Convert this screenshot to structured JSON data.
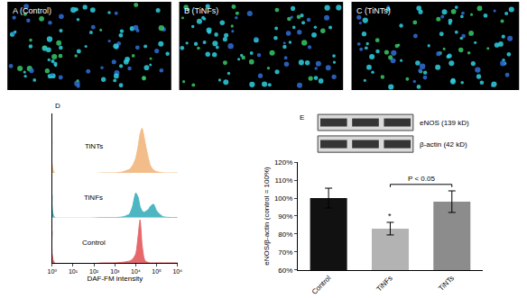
{
  "chart_data": [
    {
      "type": "image",
      "title": "A (Control)"
    },
    {
      "type": "image",
      "title": "B (TiNFs)"
    },
    {
      "type": "image",
      "title": "C (TiNTs)"
    },
    {
      "type": "area",
      "title": "D",
      "x_label": "DAF-FM intensity",
      "log": "x",
      "xlim": [
        1,
        1000000
      ],
      "xticks": [
        {
          "value": 1,
          "label": "10⁰"
        },
        {
          "value": 10,
          "label": "10¹"
        },
        {
          "value": 100,
          "label": "10²"
        },
        {
          "value": 1000,
          "label": "10³"
        },
        {
          "value": 10000,
          "label": "10⁴"
        },
        {
          "value": 100000,
          "label": "10⁵"
        },
        {
          "value": 1000000,
          "label": "10⁶"
        }
      ],
      "ylim": [
        0,
        100
      ],
      "tick_labels": "x",
      "x": [
        1,
        1.3,
        300,
        1000,
        2000,
        3000,
        5000,
        7000,
        10000,
        13000,
        16000,
        20000,
        25000,
        30000,
        40000,
        50000,
        70000,
        100000,
        200000,
        1000000
      ],
      "series": [
        {
          "name": "Control",
          "color": "#e5686c",
          "values": [
            70,
            0,
            0,
            0,
            1,
            2,
            4,
            8,
            20,
            60,
            95,
            40,
            10,
            3,
            1,
            0,
            0,
            0,
            0,
            0
          ]
        },
        {
          "name": "TiNFs",
          "color": "#4cb6c2",
          "values": [
            50,
            0,
            0,
            0,
            1,
            3,
            8,
            25,
            55,
            45,
            25,
            15,
            12,
            14,
            18,
            25,
            30,
            15,
            2,
            0
          ]
        },
        {
          "name": "TiNTs",
          "color": "#f3bd8a",
          "values": [
            55,
            0,
            0,
            0,
            1,
            3,
            6,
            12,
            25,
            45,
            65,
            75,
            60,
            45,
            25,
            12,
            5,
            2,
            0,
            0
          ]
        }
      ]
    },
    {
      "type": "bar",
      "title": "E",
      "y_label": "eNOS/β-actin (control = 100%)",
      "categories": [
        "Control",
        "TiNFs",
        "TiNTs"
      ],
      "values": [
        100,
        83,
        98
      ],
      "errors": [
        5.5,
        3.5,
        6
      ],
      "colors": [
        "#111111",
        "#b3b3b3",
        "#8c8c8c"
      ],
      "ylim": [
        60,
        120
      ],
      "yticks": [
        {
          "value": 60,
          "label": "60%"
        },
        {
          "value": 70,
          "label": "70%"
        },
        {
          "value": 80,
          "label": "80%"
        },
        {
          "value": 90,
          "label": "90%"
        },
        {
          "value": 100,
          "label": "100%"
        },
        {
          "value": 110,
          "label": "110%"
        },
        {
          "value": 120,
          "label": "120%"
        }
      ],
      "blots": [
        "eNOS (139 kD)",
        "β-actin (42 kD)"
      ],
      "annotations": [
        {
          "text": "*",
          "category": "TiNFs"
        },
        {
          "text": "P < 0.05",
          "from": "TiNFs",
          "to": "TiNTs"
        }
      ]
    }
  ]
}
